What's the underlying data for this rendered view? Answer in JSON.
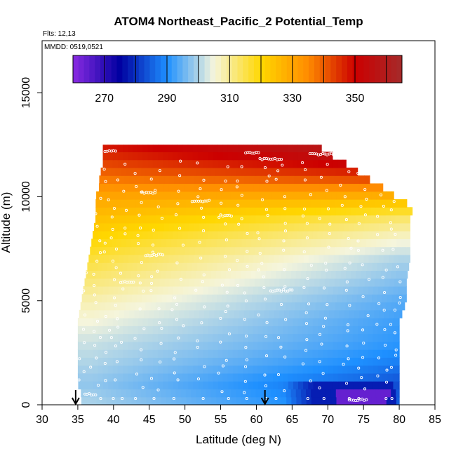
{
  "chart_data": {
    "type": "heatmap",
    "title": "ATOM4 Northeast_Pacific_2 Potential_Temp",
    "flights_label": "Flts: 12,13",
    "dates_label": "MMDD: 0519,0521",
    "xlabel": "Latitude (deg N)",
    "ylabel": "Altitude (m)",
    "xlim": [
      30,
      85
    ],
    "ylim": [
      0,
      17500
    ],
    "xticks": [
      "30",
      "35",
      "40",
      "45",
      "50",
      "55",
      "60",
      "65",
      "70",
      "75",
      "80",
      "85"
    ],
    "yticks": [
      "0",
      "5000",
      "10000",
      "15000"
    ],
    "colorbar": {
      "range": [
        260,
        365
      ],
      "tick_labels": [
        "270",
        "290",
        "310",
        "330",
        "350"
      ],
      "tick_values": [
        270,
        290,
        310,
        330,
        350
      ],
      "colors": [
        "#8A2BE2",
        "#0000A0",
        "#1E90FF",
        "#F5F5DC",
        "#FFD700",
        "#FF8C00",
        "#CC0000",
        "#A52A2A"
      ]
    },
    "field_outline_altitudes": [
      0,
      500,
      1000,
      2000,
      3000,
      4000,
      5000,
      6000,
      7000,
      8000,
      9000,
      9500,
      10000,
      10500,
      11000,
      11500,
      12000,
      12500
    ],
    "field_outline_lat_min": [
      35.5,
      35.5,
      35,
      35,
      35,
      35,
      35.5,
      36,
      36.5,
      37,
      37.5,
      37.5,
      37.5,
      38,
      38,
      38.5,
      38.5,
      38.5
    ],
    "field_outline_lat_max": [
      80,
      80,
      80,
      80,
      80,
      80,
      81,
      81,
      81.5,
      81.5,
      81.5,
      82,
      79.5,
      77.5,
      75,
      73,
      70.5,
      68.5
    ],
    "theta_profile": [
      {
        "alt": 0,
        "south": 300,
        "north": 285
      },
      {
        "alt": 1000,
        "south": 298,
        "north": 283
      },
      {
        "alt": 2000,
        "south": 300,
        "north": 288
      },
      {
        "alt": 3000,
        "south": 302,
        "north": 291
      },
      {
        "alt": 4000,
        "south": 305,
        "north": 292
      },
      {
        "alt": 5000,
        "south": 308,
        "north": 294
      },
      {
        "alt": 6000,
        "south": 312,
        "north": 297
      },
      {
        "alt": 7000,
        "south": 316,
        "north": 300
      },
      {
        "alt": 8000,
        "south": 320,
        "north": 306
      },
      {
        "alt": 9000,
        "south": 325,
        "north": 313
      },
      {
        "alt": 10000,
        "south": 330,
        "north": 327
      },
      {
        "alt": 11000,
        "south": 338,
        "north": 345
      },
      {
        "alt": 12000,
        "south": 345,
        "north": 358
      },
      {
        "alt": 12500,
        "south": 348,
        "north": 362
      }
    ],
    "cold_pool": {
      "lat_min": 64,
      "lat_max": 79.5,
      "alt_max": 1000,
      "theta": 278
    },
    "coldest_patch": {
      "lat_min": 71,
      "lat_max": 78.5,
      "alt_max": 700,
      "theta": 264
    },
    "arrows_latitude": [
      34.7,
      61.2
    ]
  }
}
